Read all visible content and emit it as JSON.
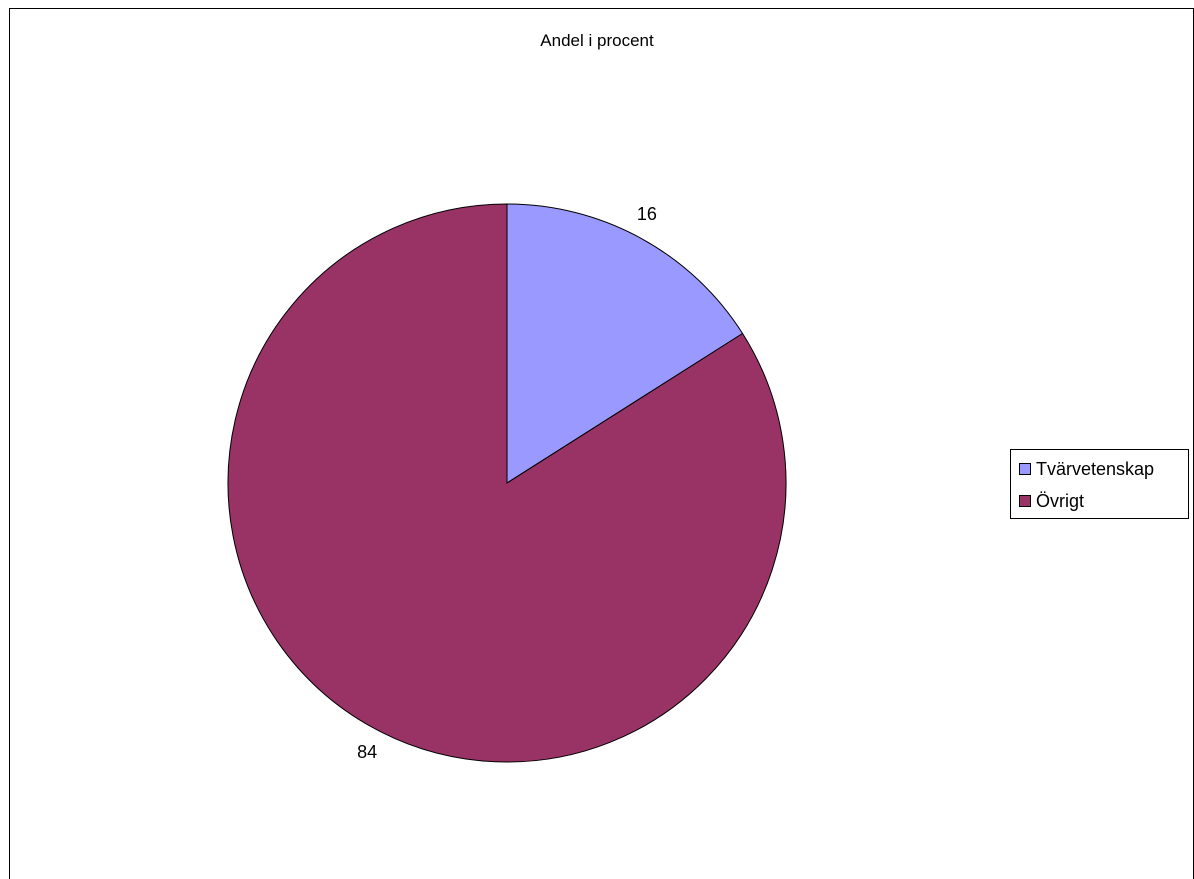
{
  "chart_data": {
    "type": "pie",
    "title": "Andel i procent",
    "categories": [
      "Tvärvetenskap",
      "Övrigt"
    ],
    "values": [
      16,
      84
    ],
    "data_labels": [
      "16",
      "84"
    ],
    "colors": [
      "#9999ff",
      "#993366"
    ],
    "legend": {
      "placement": "right",
      "entries": [
        "Tvärvetenskap",
        "Övrigt"
      ]
    }
  }
}
